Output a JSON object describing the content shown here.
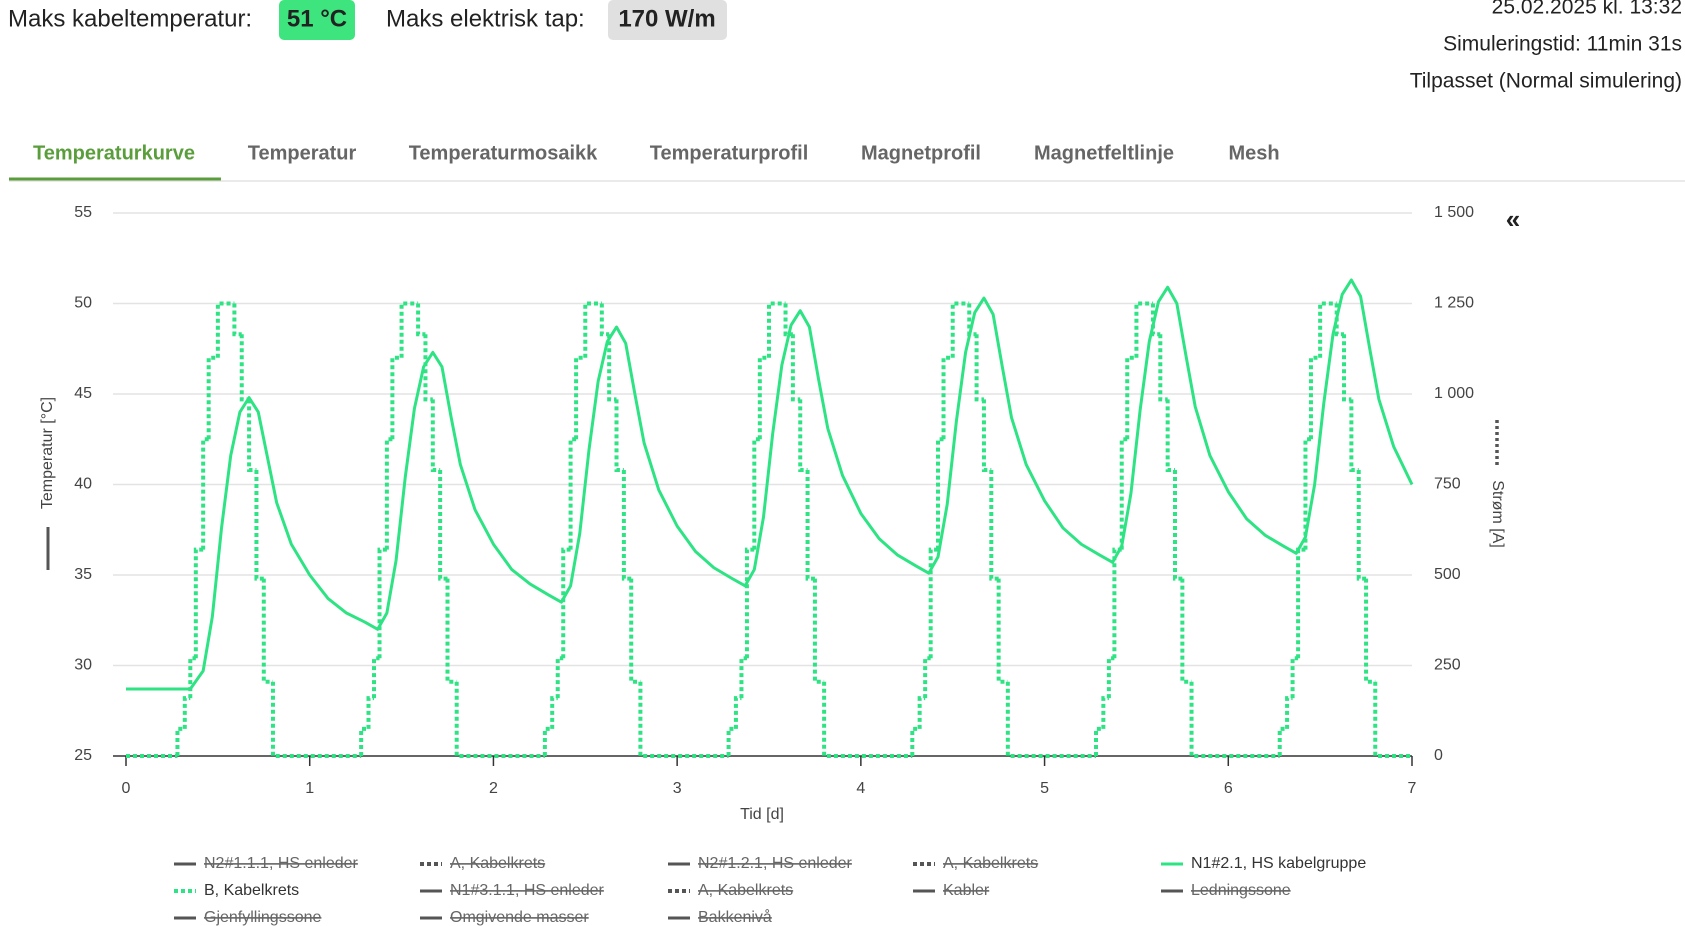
{
  "header": {
    "max_temp_label": "Maks kabeltemperatur:",
    "max_temp_value": "51 °C",
    "max_loss_label": "Maks elektrisk tap:",
    "max_loss_value": "170 W/m",
    "timestamp": "25.02.2025 kl. 13:32",
    "sim_time": "Simuleringstid: 11min 31s",
    "mode": "Tilpasset (Normal simulering)"
  },
  "tabs": [
    "Temperaturkurve",
    "Temperatur",
    "Temperaturmosaikk",
    "Temperaturprofil",
    "Magnetprofil",
    "Magnetfeltlinje",
    "Mesh"
  ],
  "active_tab": 0,
  "collapse_button": "«",
  "chart_data": {
    "type": "line",
    "xlabel": "Tid [d]",
    "ylabel": "Temperatur [°C]",
    "y2label": "Strøm [A]",
    "xlim": [
      0,
      7
    ],
    "xticks": [
      0,
      1,
      2,
      3,
      4,
      5,
      6,
      7
    ],
    "ylim": [
      25,
      55
    ],
    "yticks": [
      25,
      30,
      35,
      40,
      45,
      50,
      55
    ],
    "y2lim": [
      0,
      1500
    ],
    "y2ticks": [
      0,
      250,
      500,
      750,
      {
        "value": 1000,
        "label": "1 000"
      },
      {
        "value": 1250,
        "label": "1 250"
      },
      {
        "value": 1500,
        "label": "1 500"
      }
    ],
    "grid": true,
    "series": [
      {
        "name": "N2#1.1.1, HS enleder",
        "style": "solid",
        "visible": false,
        "color": "#555555"
      },
      {
        "name": "A, Kabelkrets",
        "style": "dotted",
        "visible": false,
        "color": "#555555"
      },
      {
        "name": "N2#1.2.1, HS enleder",
        "style": "solid",
        "visible": false,
        "color": "#555555"
      },
      {
        "name": "A, Kabelkrets",
        "style": "dotted",
        "visible": false,
        "color": "#555555"
      },
      {
        "name": "N1#2.1, HS kabelgruppe",
        "style": "solid",
        "visible": true,
        "color": "#2ee383",
        "x": [
          0,
          0.35,
          0.42,
          0.47,
          0.52,
          0.57,
          0.62,
          0.67,
          0.72,
          0.77,
          0.82,
          0.9,
          1.0,
          1.1,
          1.2,
          1.3,
          1.37,
          1.42,
          1.47,
          1.52,
          1.57,
          1.62,
          1.67,
          1.72,
          1.77,
          1.82,
          1.9,
          2.0,
          2.1,
          2.2,
          2.3,
          2.37,
          2.42,
          2.47,
          2.52,
          2.57,
          2.62,
          2.67,
          2.72,
          2.77,
          2.82,
          2.9,
          3.0,
          3.1,
          3.2,
          3.3,
          3.37,
          3.42,
          3.47,
          3.52,
          3.57,
          3.62,
          3.67,
          3.72,
          3.77,
          3.82,
          3.9,
          4.0,
          4.1,
          4.2,
          4.3,
          4.37,
          4.42,
          4.47,
          4.52,
          4.57,
          4.62,
          4.67,
          4.72,
          4.77,
          4.82,
          4.9,
          5.0,
          5.1,
          5.2,
          5.3,
          5.37,
          5.42,
          5.47,
          5.52,
          5.57,
          5.62,
          5.67,
          5.72,
          5.77,
          5.82,
          5.9,
          6.0,
          6.1,
          6.2,
          6.3,
          6.37,
          6.42,
          6.47,
          6.52,
          6.57,
          6.62,
          6.67,
          6.72,
          6.77,
          6.82,
          6.9,
          7.0
        ],
        "values": [
          28.7,
          28.7,
          29.7,
          32.7,
          37.6,
          41.6,
          44.0,
          44.8,
          44.0,
          41.5,
          39.0,
          36.7,
          35.0,
          33.7,
          32.9,
          32.4,
          32.0,
          32.9,
          35.8,
          40.4,
          44.2,
          46.5,
          47.3,
          46.5,
          43.7,
          41.1,
          38.6,
          36.7,
          35.3,
          34.5,
          33.9,
          33.5,
          34.4,
          37.3,
          41.9,
          45.7,
          47.9,
          48.7,
          47.8,
          45.0,
          42.3,
          39.7,
          37.7,
          36.3,
          35.4,
          34.8,
          34.4,
          35.3,
          38.2,
          42.8,
          46.6,
          48.8,
          49.6,
          48.7,
          45.8,
          43.1,
          40.5,
          38.4,
          37.0,
          36.1,
          35.5,
          35.1,
          36.0,
          38.9,
          43.5,
          47.3,
          49.5,
          50.3,
          49.4,
          46.5,
          43.7,
          41.1,
          39.1,
          37.6,
          36.7,
          36.1,
          35.7,
          36.6,
          39.5,
          44.1,
          47.9,
          50.1,
          50.9,
          50.0,
          47.1,
          44.3,
          41.6,
          39.6,
          38.1,
          37.2,
          36.6,
          36.2,
          37.1,
          40.0,
          44.5,
          48.3,
          50.5,
          51.3,
          50.4,
          47.5,
          44.7,
          42.1,
          40.0
        ]
      },
      {
        "name": "B, Kabelkrets",
        "style": "dotted",
        "visible": true,
        "color": "#2ee383",
        "axis": "y2",
        "step": true,
        "x": [
          0,
          0.28,
          0.32,
          0.35,
          0.38,
          0.42,
          0.45,
          0.5,
          0.59,
          0.63,
          0.67,
          0.71,
          0.75,
          0.8,
          1.28,
          1.32,
          1.35,
          1.38,
          1.42,
          1.45,
          1.5,
          1.59,
          1.63,
          1.67,
          1.71,
          1.75,
          1.8,
          2.28,
          2.32,
          2.35,
          2.38,
          2.42,
          2.45,
          2.5,
          2.59,
          2.63,
          2.67,
          2.71,
          2.75,
          2.8,
          3.28,
          3.32,
          3.35,
          3.38,
          3.42,
          3.45,
          3.5,
          3.59,
          3.63,
          3.67,
          3.71,
          3.75,
          3.8,
          4.28,
          4.32,
          4.35,
          4.38,
          4.42,
          4.45,
          4.5,
          4.59,
          4.63,
          4.67,
          4.71,
          4.75,
          4.8,
          5.28,
          5.32,
          5.35,
          5.38,
          5.42,
          5.45,
          5.5,
          5.59,
          5.63,
          5.67,
          5.71,
          5.75,
          5.8,
          6.28,
          6.32,
          6.35,
          6.38,
          6.42,
          6.45,
          6.5,
          6.59,
          6.63,
          6.67,
          6.71,
          6.75,
          6.8,
          7
        ],
        "values": [
          0,
          75,
          160,
          270,
          570,
          875,
          1100,
          1250,
          1165,
          985,
          790,
          490,
          205,
          0,
          75,
          160,
          270,
          570,
          875,
          1100,
          1250,
          1165,
          985,
          790,
          490,
          205,
          0,
          75,
          160,
          270,
          570,
          875,
          1100,
          1250,
          1165,
          985,
          790,
          490,
          205,
          0,
          75,
          160,
          270,
          570,
          875,
          1100,
          1250,
          1165,
          985,
          790,
          490,
          205,
          0,
          75,
          160,
          270,
          570,
          875,
          1100,
          1250,
          1165,
          985,
          790,
          490,
          205,
          0,
          75,
          160,
          270,
          570,
          875,
          1100,
          1250,
          1165,
          985,
          790,
          490,
          205,
          0,
          75,
          160,
          270,
          570,
          875,
          1100,
          1250,
          1165,
          985,
          790,
          490,
          205,
          0,
          0
        ]
      },
      {
        "name": "N1#3.1.1, HS enleder",
        "style": "solid",
        "visible": false,
        "color": "#555555"
      },
      {
        "name": "A, Kabelkrets",
        "style": "dotted",
        "visible": false,
        "color": "#555555"
      },
      {
        "name": "Kabler",
        "style": "solid",
        "visible": false,
        "color": "#555555"
      },
      {
        "name": "Ledningssone",
        "style": "solid",
        "visible": false,
        "color": "#555555"
      },
      {
        "name": "Gjenfyllingssone",
        "style": "solid",
        "visible": false,
        "color": "#555555"
      },
      {
        "name": "Omgivende masser",
        "style": "solid",
        "visible": false,
        "color": "#555555"
      },
      {
        "name": "Bakkenivå",
        "style": "solid",
        "visible": false,
        "color": "#555555"
      }
    ]
  }
}
